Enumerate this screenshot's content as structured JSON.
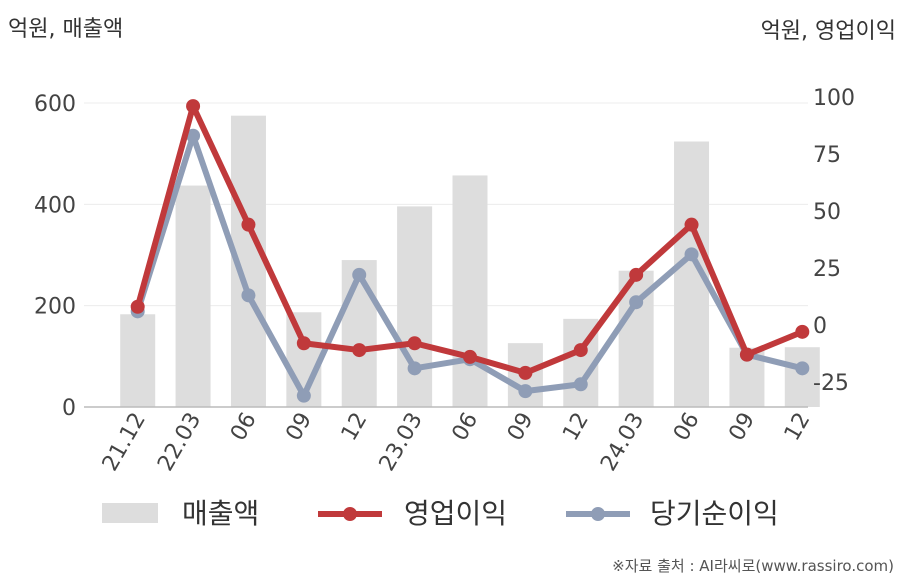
{
  "chart_data": {
    "type": "bar+line",
    "left_unit_label": "억원, 매출액",
    "right_unit_label": "억원, 영업이익",
    "categories": [
      "21.12",
      "22.03",
      "06",
      "09",
      "12",
      "23.03",
      "06",
      "09",
      "12",
      "24.03",
      "06",
      "09",
      "12"
    ],
    "left_axis": {
      "ylim": [
        0,
        600
      ],
      "ticks": [
        "0",
        "200",
        "400",
        "600"
      ]
    },
    "right_axis": {
      "ylim": [
        -35,
        100
      ],
      "ticks": [
        "-25",
        "0",
        "25",
        "50",
        "75",
        "100"
      ]
    },
    "series": [
      {
        "name": "매출액",
        "type": "bar",
        "axis": "left",
        "color": "#dddddd",
        "values": [
          183,
          437,
          575,
          187,
          290,
          396,
          457,
          126,
          174,
          269,
          524,
          117,
          118
        ]
      },
      {
        "name": "영업이익",
        "type": "line",
        "axis": "right",
        "color": "#c0393b",
        "values": [
          8,
          96,
          44,
          -8,
          -11,
          -8,
          -14,
          -21,
          -11,
          22,
          44,
          -13,
          -3
        ]
      },
      {
        "name": "당기순이익",
        "type": "line",
        "axis": "right",
        "color": "#8f9db6",
        "values": [
          6,
          83,
          13,
          -31,
          22,
          -19,
          -15,
          -29,
          -26,
          10,
          31,
          -13,
          -19
        ]
      }
    ],
    "grid": true,
    "legend_position": "bottom"
  },
  "footer": {
    "source": "※자료 출처 : AI라씨로(www.rassiro.com)"
  }
}
